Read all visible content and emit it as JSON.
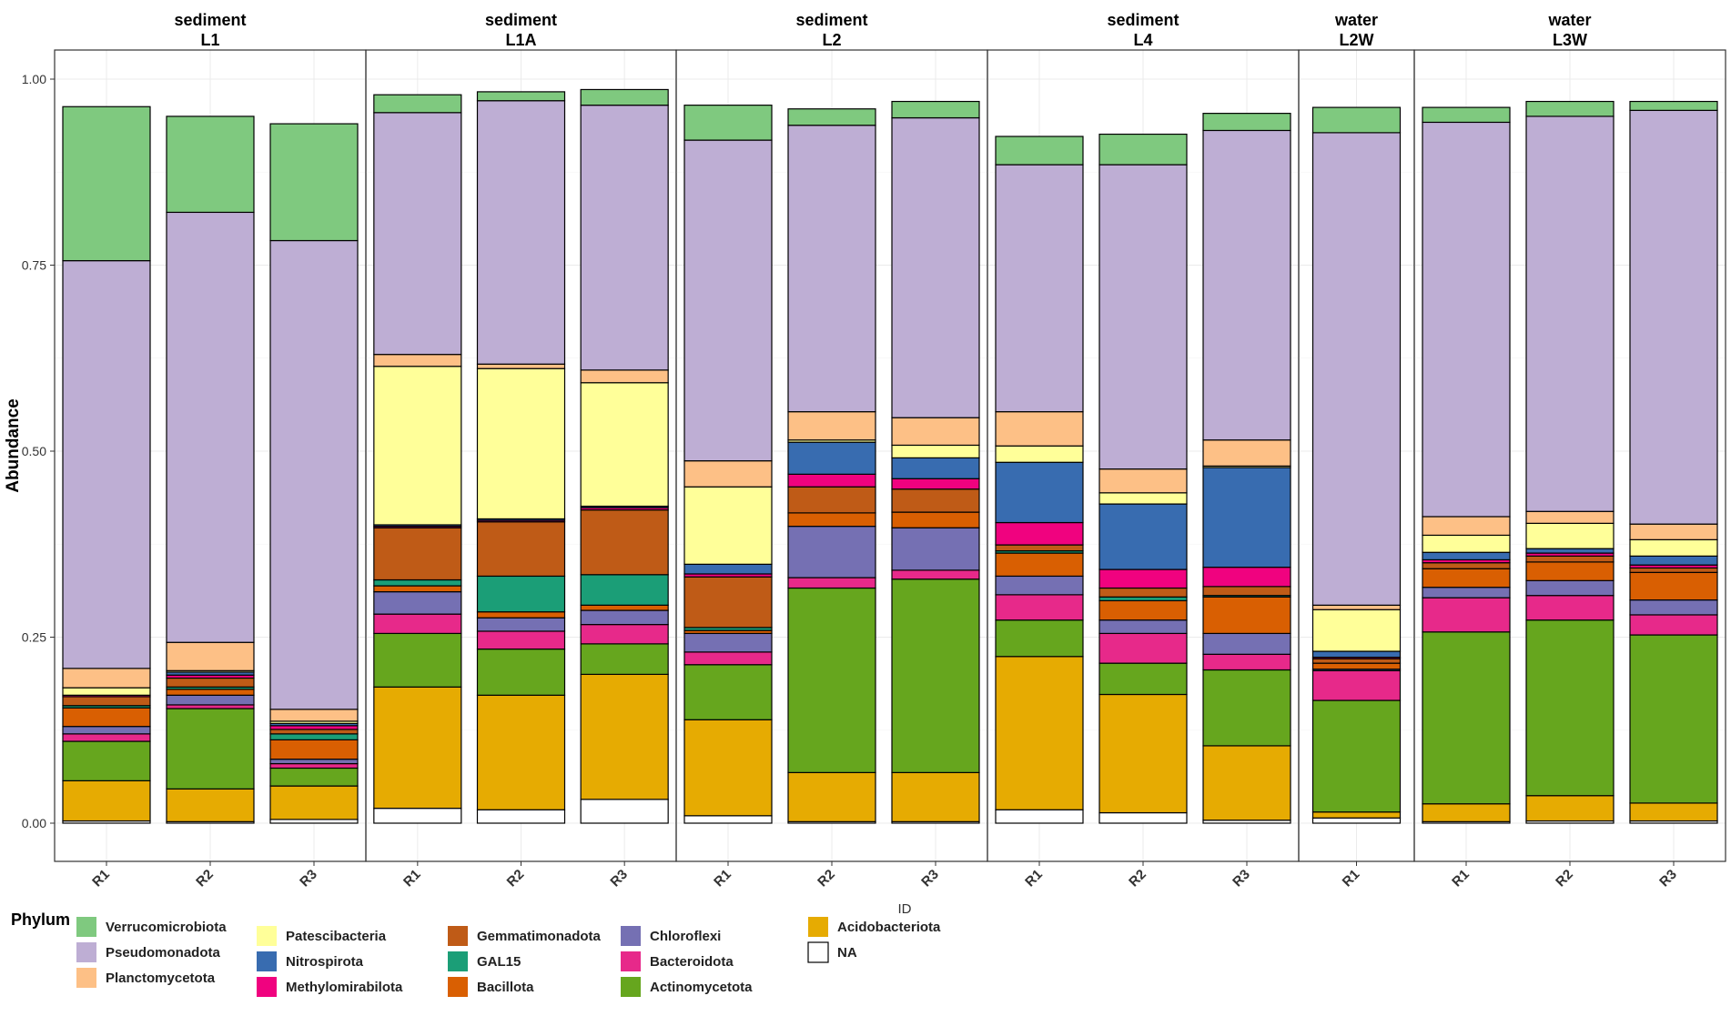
{
  "chart_data": {
    "type": "bar",
    "stacked": true,
    "faceted": true,
    "xlabel": "ID",
    "ylabel": "Abundance",
    "ylim": [
      0,
      1.0
    ],
    "y_ticks": [
      "0.00",
      "0.25",
      "0.50",
      "0.75",
      "1.00"
    ],
    "y_tick_values": [
      0,
      0.25,
      0.5,
      0.75,
      1.0
    ],
    "legend": {
      "title": "Phylum",
      "position": "bottom-left",
      "columns": [
        [
          "Verrucomicrobiota",
          "Pseudomonadota",
          "Planctomycetota"
        ],
        [
          "Patescibacteria",
          "Nitrospirota",
          "Methylomirabilota"
        ],
        [
          "Gemmatimonadota",
          "GAL15",
          "Bacillota"
        ],
        [
          "Chloroflexi",
          "Bacteroidota",
          "Actinomycetota"
        ],
        [
          "Acidobacteriota",
          "NA"
        ]
      ]
    },
    "phyla": [
      "NA",
      "Acidobacteriota",
      "Actinomycetota",
      "Bacteroidota",
      "Chloroflexi",
      "Bacillota",
      "GAL15",
      "Gemmatimonadota",
      "Methylomirabilota",
      "Nitrospirota",
      "Patescibacteria",
      "Planctomycetota",
      "Pseudomonadota",
      "Verrucomicrobiota"
    ],
    "colors": {
      "Verrucomicrobiota": "#7fc97f",
      "Pseudomonadota": "#beaed4",
      "Planctomycetota": "#fdc086",
      "Patescibacteria": "#ffff99",
      "Nitrospirota": "#386cb0",
      "Methylomirabilota": "#f0027f",
      "Gemmatimonadota": "#bf5b17",
      "GAL15": "#1b9e77",
      "Bacillota": "#d95f02",
      "Chloroflexi": "#7570b3",
      "Bacteroidota": "#e7298a",
      "Actinomycetota": "#66a61e",
      "Acidobacteriota": "#e6ab02",
      "NA": "#ffffff"
    },
    "facets": [
      {
        "title_top": "sediment",
        "title_bottom": "L1",
        "bars": [
          {
            "id": "R1",
            "values": [
              0.003,
              0.054,
              0.053,
              0.01,
              0.01,
              0.025,
              0.003,
              0.012,
              0.002,
              0.0,
              0.01,
              0.026,
              0.548,
              0.207
            ]
          },
          {
            "id": "R2",
            "values": [
              0.002,
              0.044,
              0.108,
              0.005,
              0.013,
              0.008,
              0.003,
              0.012,
              0.004,
              0.004,
              0.002,
              0.038,
              0.578,
              0.129
            ]
          },
          {
            "id": "R3",
            "values": [
              0.005,
              0.045,
              0.024,
              0.006,
              0.006,
              0.026,
              0.008,
              0.006,
              0.005,
              0.003,
              0.003,
              0.016,
              0.63,
              0.157
            ]
          }
        ]
      },
      {
        "title_top": "sediment",
        "title_bottom": "L1A",
        "bars": [
          {
            "id": "R1",
            "values": [
              0.02,
              0.163,
              0.072,
              0.026,
              0.03,
              0.008,
              0.008,
              0.07,
              0.002,
              0.002,
              0.213,
              0.016,
              0.325,
              0.024
            ]
          },
          {
            "id": "R2",
            "values": [
              0.018,
              0.154,
              0.062,
              0.024,
              0.018,
              0.008,
              0.048,
              0.073,
              0.002,
              0.002,
              0.202,
              0.006,
              0.354,
              0.012
            ]
          },
          {
            "id": "R3",
            "values": [
              0.032,
              0.168,
              0.041,
              0.026,
              0.019,
              0.007,
              0.041,
              0.087,
              0.003,
              0.002,
              0.166,
              0.017,
              0.356,
              0.021
            ]
          }
        ]
      },
      {
        "title_top": "sediment",
        "title_bottom": "L2",
        "bars": [
          {
            "id": "R1",
            "values": [
              0.01,
              0.129,
              0.074,
              0.017,
              0.025,
              0.004,
              0.004,
              0.068,
              0.004,
              0.013,
              0.104,
              0.035,
              0.431,
              0.047
            ]
          },
          {
            "id": "R2",
            "values": [
              0.002,
              0.066,
              0.248,
              0.014,
              0.069,
              0.018,
              0.0,
              0.035,
              0.017,
              0.043,
              0.003,
              0.038,
              0.385,
              0.022
            ]
          },
          {
            "id": "R3",
            "values": [
              0.002,
              0.066,
              0.26,
              0.012,
              0.057,
              0.021,
              0.0,
              0.031,
              0.014,
              0.028,
              0.017,
              0.037,
              0.403,
              0.022
            ]
          }
        ]
      },
      {
        "title_top": "sediment",
        "title_bottom": "L4",
        "bars": [
          {
            "id": "R1",
            "values": [
              0.018,
              0.206,
              0.049,
              0.034,
              0.025,
              0.031,
              0.003,
              0.008,
              0.03,
              0.081,
              0.022,
              0.046,
              0.332,
              0.038
            ]
          },
          {
            "id": "R2",
            "values": [
              0.014,
              0.159,
              0.042,
              0.04,
              0.018,
              0.026,
              0.005,
              0.012,
              0.025,
              0.088,
              0.015,
              0.032,
              0.409,
              0.041
            ]
          },
          {
            "id": "R3",
            "values": [
              0.004,
              0.1,
              0.102,
              0.021,
              0.028,
              0.049,
              0.002,
              0.012,
              0.026,
              0.134,
              0.002,
              0.035,
              0.416,
              0.023
            ]
          }
        ]
      },
      {
        "title_top": "water",
        "title_bottom": "L2W",
        "bars": [
          {
            "id": "R1",
            "values": [
              0.007,
              0.008,
              0.15,
              0.04,
              0.002,
              0.008,
              0.0,
              0.006,
              0.002,
              0.008,
              0.056,
              0.006,
              0.635,
              0.034
            ]
          }
        ]
      },
      {
        "title_top": "water",
        "title_bottom": "L3W",
        "bars": [
          {
            "id": "R1",
            "values": [
              0.002,
              0.024,
              0.231,
              0.046,
              0.014,
              0.025,
              0.0,
              0.008,
              0.004,
              0.01,
              0.023,
              0.025,
              0.53,
              0.02
            ]
          },
          {
            "id": "R2",
            "values": [
              0.003,
              0.034,
              0.236,
              0.033,
              0.02,
              0.025,
              0.0,
              0.008,
              0.004,
              0.006,
              0.034,
              0.016,
              0.531,
              0.02
            ]
          },
          {
            "id": "R3",
            "values": [
              0.003,
              0.024,
              0.226,
              0.027,
              0.02,
              0.037,
              0.0,
              0.006,
              0.004,
              0.012,
              0.022,
              0.021,
              0.556,
              0.012
            ]
          }
        ]
      }
    ]
  }
}
